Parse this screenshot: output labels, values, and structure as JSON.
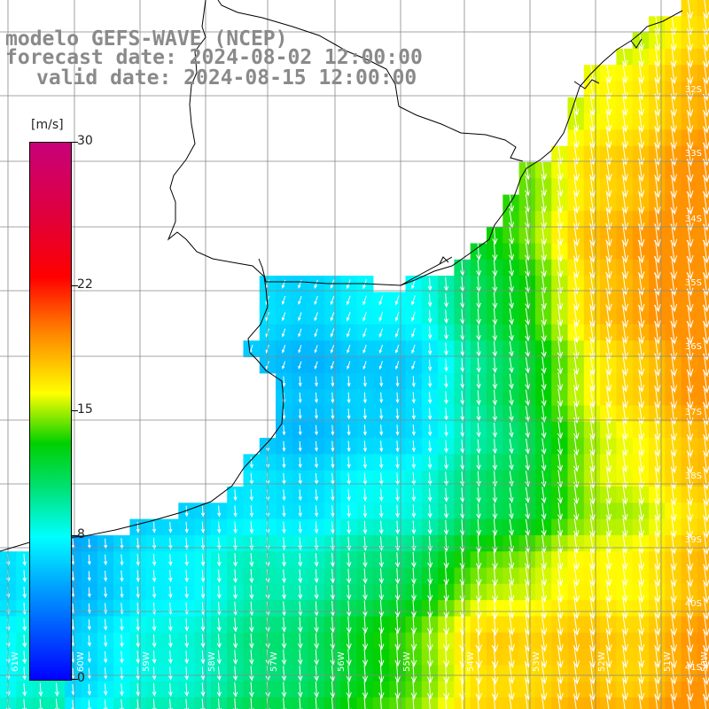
{
  "header": {
    "model": "modelo GEFS-WAVE (NCEP)",
    "forecast_date": "forecast date: 2024-08-02 12:00:00",
    "valid_date": "valid date: 2024-08-15 12:00:00"
  },
  "colorbar": {
    "unit": "[m/s]",
    "min": 0,
    "max": 30,
    "ticks": [
      {
        "value": 0,
        "label": "0"
      },
      {
        "value": 8,
        "label": "8"
      },
      {
        "value": 15,
        "label": "15"
      },
      {
        "value": 22,
        "label": "22"
      },
      {
        "value": 30,
        "label": "30"
      }
    ]
  },
  "latitude_labels": [
    "32S",
    "33S",
    "34S",
    "35S",
    "36S",
    "37S",
    "38S",
    "39S",
    "40S",
    "41S"
  ],
  "longitude_labels": [
    "61W",
    "60W",
    "59W",
    "58W",
    "57W",
    "56W",
    "55W",
    "54W",
    "53W",
    "52W",
    "51W",
    "50W"
  ],
  "colors": {
    "land": "#ffffff",
    "grid": "#888888",
    "coast": "#000000",
    "title": "#8a8a8a",
    "arrows": "#ffffff"
  }
}
